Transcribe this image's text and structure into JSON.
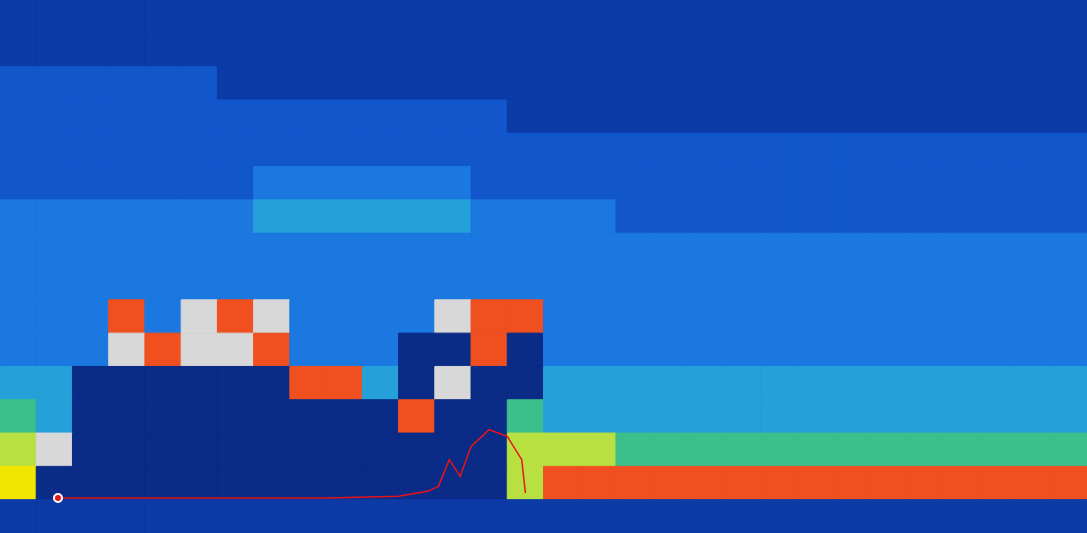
{
  "chart_data": {
    "type": "heatmap",
    "xlim": [
      0,
      30
    ],
    "ylim": [
      0,
      16
    ],
    "vlim": [
      0,
      9
    ],
    "tick_labels": false,
    "cells": [
      [
        1,
        1,
        1,
        1,
        1,
        1,
        1,
        1,
        1,
        1,
        1,
        1,
        1,
        1,
        1,
        1,
        1,
        1,
        1,
        1,
        1,
        1,
        1,
        1,
        1,
        1,
        1,
        1,
        1,
        1
      ],
      [
        1,
        1,
        1,
        1,
        1,
        1,
        1,
        1,
        1,
        1,
        1,
        1,
        1,
        1,
        1,
        1,
        1,
        1,
        1,
        1,
        1,
        1,
        1,
        1,
        1,
        1,
        1,
        1,
        1,
        1
      ],
      [
        2,
        2,
        2,
        2,
        2,
        2,
        1,
        1,
        1,
        1,
        1,
        1,
        1,
        1,
        1,
        1,
        1,
        1,
        1,
        1,
        1,
        1,
        1,
        1,
        1,
        1,
        1,
        1,
        1,
        1
      ],
      [
        2,
        2,
        2,
        2,
        2,
        2,
        2,
        2,
        2,
        2,
        2,
        2,
        2,
        2,
        1,
        1,
        1,
        1,
        1,
        1,
        1,
        1,
        1,
        1,
        1,
        1,
        1,
        1,
        1,
        1
      ],
      [
        2,
        2,
        2,
        2,
        2,
        2,
        2,
        2,
        2,
        2,
        2,
        2,
        2,
        2,
        2,
        2,
        2,
        2,
        2,
        2,
        2,
        2,
        2,
        2,
        2,
        2,
        2,
        2,
        2,
        2
      ],
      [
        2,
        2,
        2,
        2,
        2,
        2,
        2,
        3,
        3,
        3,
        3,
        3,
        3,
        2,
        2,
        2,
        2,
        2,
        2,
        2,
        2,
        2,
        2,
        2,
        2,
        2,
        2,
        2,
        2,
        2
      ],
      [
        3,
        3,
        3,
        3,
        3,
        3,
        3,
        4,
        4,
        4,
        4,
        4,
        4,
        3,
        3,
        3,
        3,
        2,
        2,
        2,
        2,
        2,
        2,
        2,
        2,
        2,
        2,
        2,
        2,
        2
      ],
      [
        3,
        3,
        3,
        3,
        3,
        3,
        3,
        3,
        3,
        3,
        3,
        3,
        3,
        3,
        3,
        3,
        3,
        3,
        3,
        3,
        3,
        3,
        3,
        3,
        3,
        3,
        3,
        3,
        3,
        3
      ],
      [
        3,
        3,
        3,
        3,
        3,
        3,
        3,
        3,
        3,
        3,
        3,
        3,
        3,
        3,
        3,
        3,
        3,
        3,
        3,
        3,
        3,
        3,
        3,
        3,
        3,
        3,
        3,
        3,
        3,
        3
      ],
      [
        3,
        3,
        3,
        8,
        3,
        9,
        8,
        9,
        3,
        3,
        3,
        3,
        9,
        8,
        8,
        3,
        3,
        3,
        3,
        3,
        3,
        3,
        3,
        3,
        3,
        3,
        3,
        3,
        3,
        3
      ],
      [
        3,
        3,
        3,
        9,
        8,
        9,
        9,
        8,
        3,
        3,
        3,
        0,
        0,
        8,
        0,
        3,
        3,
        3,
        3,
        3,
        3,
        3,
        3,
        3,
        3,
        3,
        3,
        3,
        3,
        3
      ],
      [
        4,
        4,
        0,
        0,
        0,
        0,
        0,
        0,
        8,
        8,
        4,
        0,
        9,
        0,
        0,
        4,
        4,
        4,
        4,
        4,
        4,
        4,
        4,
        4,
        4,
        4,
        4,
        4,
        4,
        4
      ],
      [
        5,
        4,
        0,
        0,
        0,
        0,
        0,
        0,
        0,
        0,
        0,
        8,
        0,
        0,
        5,
        4,
        4,
        4,
        4,
        4,
        4,
        4,
        4,
        4,
        4,
        4,
        4,
        4,
        4,
        4
      ],
      [
        6,
        9,
        0,
        0,
        0,
        0,
        0,
        0,
        0,
        0,
        0,
        0,
        0,
        0,
        6,
        6,
        6,
        5,
        5,
        5,
        5,
        5,
        5,
        5,
        5,
        5,
        5,
        5,
        5,
        5
      ],
      [
        7,
        0,
        0,
        0,
        0,
        0,
        0,
        0,
        0,
        0,
        0,
        0,
        0,
        0,
        6,
        8,
        8,
        8,
        8,
        8,
        8,
        8,
        8,
        8,
        8,
        8,
        8,
        8,
        8,
        8
      ],
      [
        1,
        1,
        1,
        1,
        1,
        1,
        1,
        1,
        1,
        1,
        1,
        1,
        1,
        1,
        1,
        1,
        1,
        1,
        1,
        1,
        1,
        1,
        1,
        1,
        1,
        1,
        1,
        1,
        1,
        1
      ]
    ],
    "line": {
      "type": "line",
      "color": "#e8141c",
      "x": [
        1.6,
        5,
        9,
        11,
        11.8,
        12.1,
        12.4,
        12.7,
        13.0,
        13.5,
        14.0,
        14.4,
        14.5
      ],
      "y": [
        1.05,
        1.05,
        1.05,
        1.1,
        1.25,
        1.4,
        2.2,
        1.7,
        2.6,
        3.1,
        2.9,
        2.2,
        1.2
      ]
    }
  }
}
